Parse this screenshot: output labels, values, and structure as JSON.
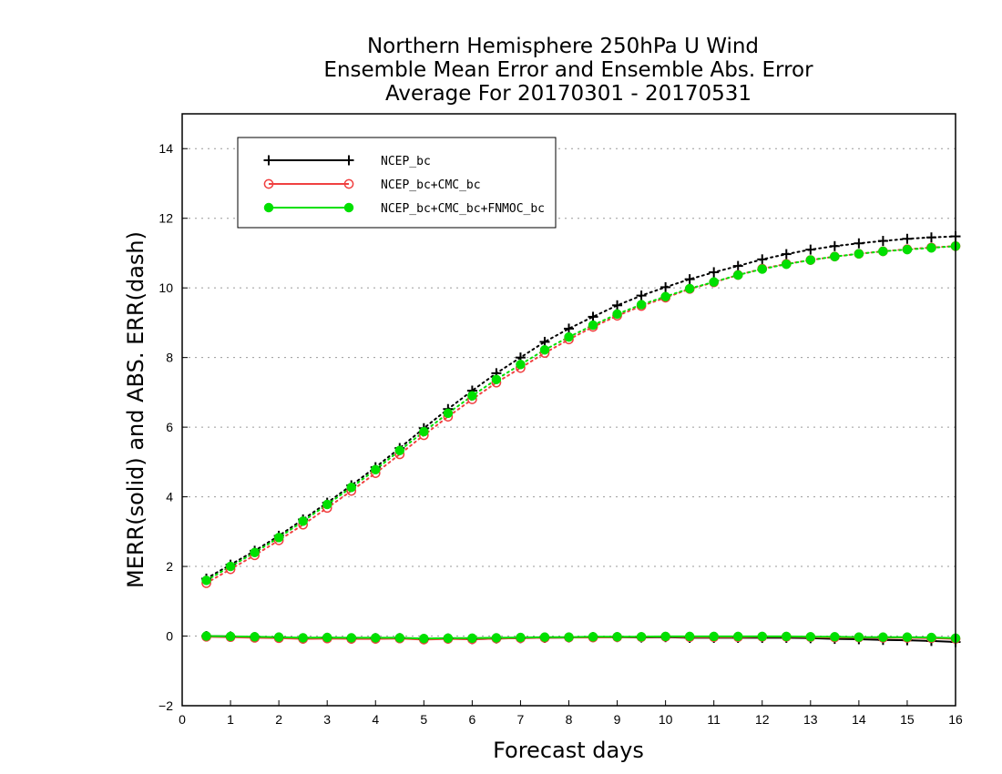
{
  "chart_data": {
    "type": "line",
    "title_lines": [
      "Northern Hemisphere 250hPa U Wind",
      "Ensemble Mean Error and Ensemble Abs. Error",
      "Average For 20170301 - 20170531"
    ],
    "xlabel": "Forecast days",
    "ylabel": "MERR(solid) and ABS. ERR(dash)",
    "xlim": [
      0,
      16
    ],
    "ylim": [
      -2,
      15
    ],
    "xticks": [
      0,
      1,
      2,
      3,
      4,
      5,
      6,
      7,
      8,
      9,
      10,
      11,
      12,
      13,
      14,
      15,
      16
    ],
    "yticks": [
      -2,
      0,
      2,
      4,
      6,
      8,
      10,
      12,
      14
    ],
    "grid": "horizontal dotted",
    "legend_position": "top-left",
    "x": [
      0.5,
      1,
      1.5,
      2,
      2.5,
      3,
      3.5,
      4,
      4.5,
      5,
      5.5,
      6,
      6.5,
      7,
      7.5,
      8,
      8.5,
      9,
      9.5,
      10,
      10.5,
      11,
      11.5,
      12,
      12.5,
      13,
      13.5,
      14,
      14.5,
      15,
      15.5,
      16
    ],
    "series": [
      {
        "name": "NCEP_bc",
        "color": "#000000",
        "marker": "plus",
        "abs_err": [
          1.65,
          2.05,
          2.45,
          2.88,
          3.35,
          3.83,
          4.33,
          4.85,
          5.4,
          5.97,
          6.52,
          7.05,
          7.55,
          8.0,
          8.45,
          8.83,
          9.17,
          9.5,
          9.78,
          10.02,
          10.25,
          10.45,
          10.63,
          10.82,
          10.97,
          11.1,
          11.2,
          11.28,
          11.35,
          11.41,
          11.45,
          11.48
        ],
        "mean_err": [
          0.0,
          -0.01,
          -0.03,
          -0.04,
          -0.07,
          -0.05,
          -0.07,
          -0.06,
          -0.06,
          -0.09,
          -0.07,
          -0.09,
          -0.07,
          -0.06,
          -0.05,
          -0.04,
          -0.03,
          -0.03,
          -0.04,
          -0.03,
          -0.05,
          -0.05,
          -0.05,
          -0.05,
          -0.05,
          -0.06,
          -0.08,
          -0.09,
          -0.11,
          -0.12,
          -0.14,
          -0.17
        ]
      },
      {
        "name": "NCEP_bc+CMC_bc",
        "color": "#f04040",
        "marker": "open-circle",
        "abs_err": [
          1.52,
          1.92,
          2.32,
          2.75,
          3.2,
          3.68,
          4.17,
          4.68,
          5.22,
          5.77,
          6.3,
          6.8,
          7.28,
          7.7,
          8.13,
          8.52,
          8.88,
          9.2,
          9.48,
          9.72,
          9.97,
          10.16,
          10.37,
          10.55,
          10.69,
          10.8,
          10.9,
          10.98,
          11.05,
          11.11,
          11.16,
          11.2
        ],
        "mean_err": [
          -0.02,
          -0.03,
          -0.05,
          -0.06,
          -0.08,
          -0.07,
          -0.08,
          -0.08,
          -0.07,
          -0.1,
          -0.08,
          -0.09,
          -0.07,
          -0.06,
          -0.05,
          -0.04,
          -0.04,
          -0.03,
          -0.03,
          -0.02,
          -0.03,
          -0.03,
          -0.03,
          -0.02,
          -0.02,
          -0.03,
          -0.04,
          -0.04,
          -0.05,
          -0.05,
          -0.06,
          -0.08
        ]
      },
      {
        "name": "NCEP_bc+CMC_bc+FNMOC_bc",
        "color": "#00e000",
        "marker": "filled-circle",
        "abs_err": [
          1.6,
          2.0,
          2.4,
          2.83,
          3.3,
          3.78,
          4.27,
          4.78,
          5.33,
          5.87,
          6.4,
          6.9,
          7.37,
          7.8,
          8.22,
          8.59,
          8.93,
          9.25,
          9.52,
          9.75,
          9.98,
          10.17,
          10.37,
          10.54,
          10.68,
          10.8,
          10.9,
          10.98,
          11.05,
          11.1,
          11.15,
          11.2
        ],
        "mean_err": [
          0.0,
          -0.01,
          -0.02,
          -0.03,
          -0.05,
          -0.04,
          -0.05,
          -0.05,
          -0.05,
          -0.07,
          -0.06,
          -0.06,
          -0.05,
          -0.04,
          -0.03,
          -0.03,
          -0.02,
          -0.02,
          -0.02,
          -0.01,
          -0.01,
          -0.01,
          -0.01,
          -0.01,
          -0.01,
          -0.02,
          -0.02,
          -0.03,
          -0.03,
          -0.03,
          -0.04,
          -0.06
        ]
      }
    ]
  }
}
